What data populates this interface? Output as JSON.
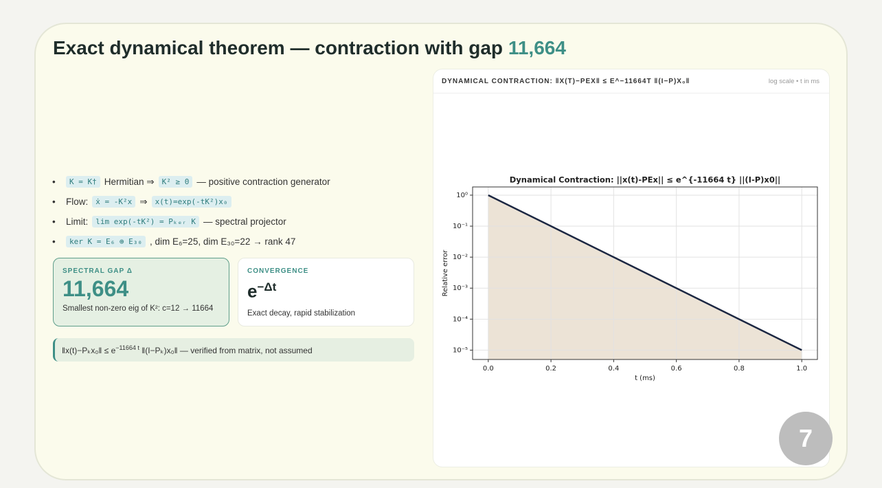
{
  "title": {
    "text": "Exact dynamical theorem — contraction with gap",
    "highlight": "11,664"
  },
  "bullets": [
    [
      {
        "chip": "K = K†"
      },
      {
        "text": "Hermitian ⇒"
      },
      {
        "chip": "K² ≥ 0"
      },
      {
        "text": "— positive contraction generator"
      }
    ],
    [
      {
        "text": "Flow:"
      },
      {
        "chip": "ẋ = -K²x"
      },
      {
        "text": "⇒"
      },
      {
        "chip": "x(t)=exp(-tK²)x₀"
      }
    ],
    [
      {
        "text": "Limit:"
      },
      {
        "chip": "lim exp(-tK²) = Pₖₑᵣ K"
      },
      {
        "text": "— spectral projector"
      }
    ],
    [
      {
        "chip": "ker K = E₆ ⊕ E₃₀"
      },
      {
        "text": ", dim E₆=25, dim E₃₀=22 → rank 47"
      }
    ]
  ],
  "cards": [
    {
      "label": "SPECTRAL GAP Δ",
      "value": "11,664",
      "note": "Smallest non-zero eig of K²: c=12 → 11664"
    },
    {
      "label": "CONVERGENCE",
      "value": "e",
      "sup": "−Δt",
      "note": "Exact decay, rapid stabilization"
    }
  ],
  "formula": {
    "pre": "‖x(t)−Pₖx₀‖ ≤ e",
    "sup": "−11664 t",
    "post": "‖(I−Pₖ)x₀‖ — verified from matrix, not assumed"
  },
  "panel": {
    "header": "DYNAMICAL CONTRACTION: ‖X(T)−PEX‖ ≤ E^−11664T ‖(I−P)X₀‖",
    "note": "log scale • t in ms"
  },
  "page_number": "7",
  "chart_data": {
    "type": "line",
    "title": "Dynamical Contraction: ||x(t)-PEx|| ≤ e^{-11664 t} ||(I-P)x0||",
    "x_label": "t (ms)",
    "y_label": "Relative error",
    "x": [
      0,
      0.2,
      0.4,
      0.6,
      0.8,
      1.0
    ],
    "series": [
      {
        "name": "Relative error",
        "color": "#1c2742",
        "fill": "#ece3d6",
        "values": [
          1,
          0.1,
          0.01,
          0.001,
          0.0001,
          1e-05
        ]
      }
    ],
    "xlim": [
      -0.05,
      1.05
    ],
    "ylim": [
      5e-06,
      1.84
    ],
    "log_y": true,
    "grid": true,
    "xticks": [
      {
        "value": 0,
        "label": "0.0"
      },
      {
        "value": 0.2,
        "label": "0.2"
      },
      {
        "value": 0.4,
        "label": "0.4"
      },
      {
        "value": 0.6,
        "label": "0.6"
      },
      {
        "value": 0.8,
        "label": "0.8"
      },
      {
        "value": 1.0,
        "label": "1.0"
      }
    ],
    "yticks": [
      {
        "value": 1,
        "label": "10⁰"
      },
      {
        "value": 0.1,
        "label": "10⁻¹"
      },
      {
        "value": 0.01,
        "label": "10⁻²"
      },
      {
        "value": 0.001,
        "label": "10⁻³"
      },
      {
        "value": 0.0001,
        "label": "10⁻⁴"
      },
      {
        "value": 1e-05,
        "label": "10⁻⁵"
      }
    ]
  }
}
